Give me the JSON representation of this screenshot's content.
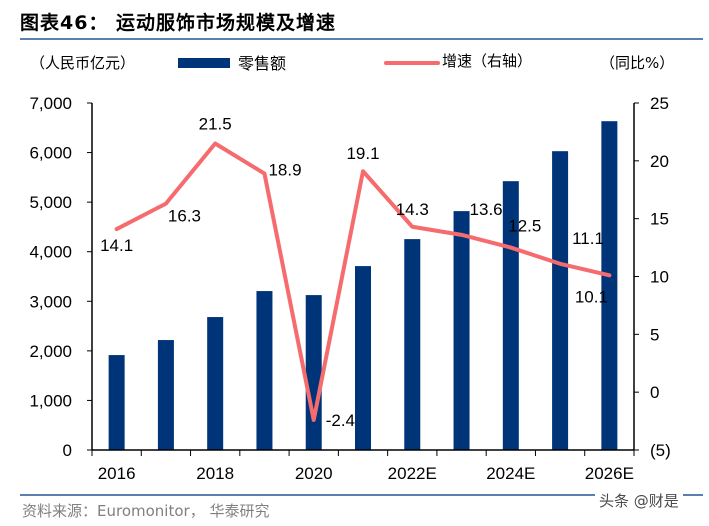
{
  "header": {
    "title": "图表46： 运动服饰市场规模及增速"
  },
  "legend": {
    "left_unit": "（人民币亿元）",
    "bar_label": "零售额",
    "line_label": "增速（右轴）",
    "right_unit": "（同比%）"
  },
  "footer": {
    "source": "资料来源：Euromonitor， 华泰研究",
    "watermark": "头条 @财是"
  },
  "colors": {
    "bar": "#003478",
    "line": "#f56b6e"
  },
  "chart_data": {
    "type": "bar",
    "title": "运动服饰市场规模及增速",
    "categories": [
      "2016",
      "2017",
      "2018",
      "2019",
      "2020",
      "2021",
      "2022E",
      "2023E",
      "2024E",
      "2025E",
      "2026E"
    ],
    "x_tick_labels": [
      "2016",
      "",
      "2018",
      "",
      "2020",
      "",
      "2022E",
      "",
      "2024E",
      "",
      "2026E"
    ],
    "series": [
      {
        "name": "零售额",
        "type": "bar",
        "axis": "left",
        "values": [
          1915,
          2218,
          2682,
          3206,
          3125,
          3710,
          4254,
          4819,
          5423,
          6028,
          6633
        ]
      },
      {
        "name": "增速（右轴）",
        "type": "line",
        "axis": "right",
        "values": [
          14.1,
          16.3,
          21.5,
          18.9,
          -2.4,
          19.1,
          14.3,
          13.6,
          12.5,
          11.1,
          10.1
        ],
        "labels": [
          "14.1",
          "16.3",
          "21.5",
          "18.9",
          "-2.4",
          "19.1",
          "14.3",
          "13.6",
          "12.5",
          "11.1",
          "10.1"
        ]
      }
    ],
    "y_left": {
      "label": "（人民币亿元）",
      "range": [
        0,
        7000
      ],
      "ticks": [
        0,
        1000,
        2000,
        3000,
        4000,
        5000,
        6000,
        7000
      ],
      "tick_labels": [
        "0",
        "1,000",
        "2,000",
        "3,000",
        "4,000",
        "5,000",
        "6,000",
        "7,000"
      ]
    },
    "y_right": {
      "label": "（同比%）",
      "range": [
        -5,
        25
      ],
      "ticks": [
        -5,
        0,
        5,
        10,
        15,
        20,
        25
      ],
      "tick_labels": [
        "(5)",
        "0",
        "5",
        "10",
        "15",
        "20",
        "25"
      ]
    },
    "grid": false,
    "legend_position": "top"
  }
}
